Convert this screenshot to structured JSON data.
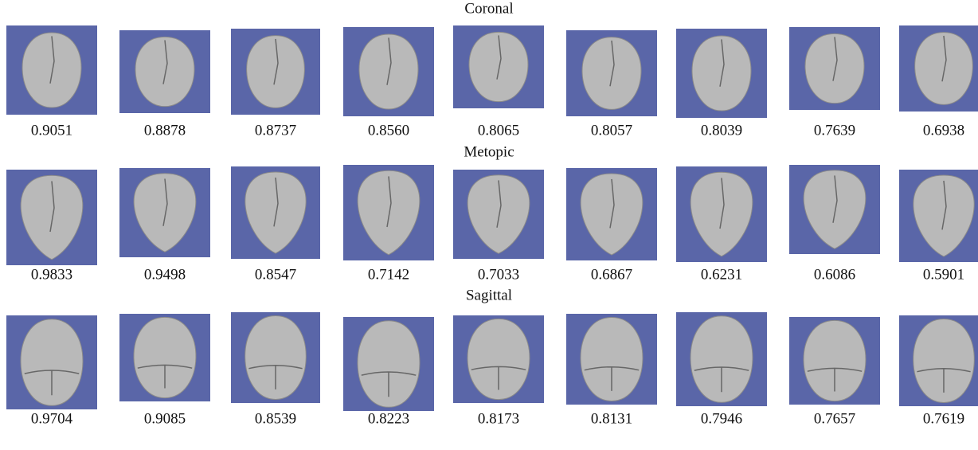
{
  "rows": [
    {
      "title": "Coronal",
      "scores": [
        "0.9051",
        "0.8878",
        "0.8737",
        "0.8560",
        "0.8065",
        "0.8057",
        "0.8039",
        "0.7639",
        "0.6938"
      ]
    },
    {
      "title": "Metopic",
      "scores": [
        "0.9833",
        "0.9498",
        "0.8547",
        "0.7142",
        "0.7033",
        "0.6867",
        "0.6231",
        "0.6086",
        "0.5901"
      ]
    },
    {
      "title": "Sagittal",
      "scores": [
        "0.9704",
        "0.9085",
        "0.8539",
        "0.8223",
        "0.8173",
        "0.8131",
        "0.7946",
        "0.7657",
        "0.7619"
      ]
    }
  ]
}
